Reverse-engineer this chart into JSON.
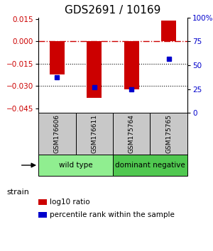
{
  "title": "GDS2691 / 10169",
  "samples": [
    "GSM176606",
    "GSM176611",
    "GSM175764",
    "GSM175765"
  ],
  "log10_ratio": [
    -0.022,
    -0.038,
    -0.032,
    0.014
  ],
  "percentile_rank_pct": [
    37,
    27,
    25,
    57
  ],
  "ylim_left": [
    -0.048,
    0.016
  ],
  "ylim_right": [
    0,
    100
  ],
  "yticks_left": [
    -0.045,
    -0.03,
    -0.015,
    0,
    0.015
  ],
  "yticks_right": [
    0,
    25,
    50,
    75,
    100
  ],
  "groups": [
    {
      "label": "wild type",
      "samples": [
        0,
        1
      ],
      "color": "#90EE90"
    },
    {
      "label": "dominant negative",
      "samples": [
        2,
        3
      ],
      "color": "#50C850"
    }
  ],
  "bar_color": "#CC0000",
  "dot_color": "#0000CC",
  "bar_width": 0.4,
  "zero_line_color": "#CC0000",
  "bg_color": "#FFFFFF",
  "sample_box_color": "#C8C8C8",
  "title_fontsize": 11,
  "tick_fontsize": 7.5,
  "label_fontsize": 8
}
